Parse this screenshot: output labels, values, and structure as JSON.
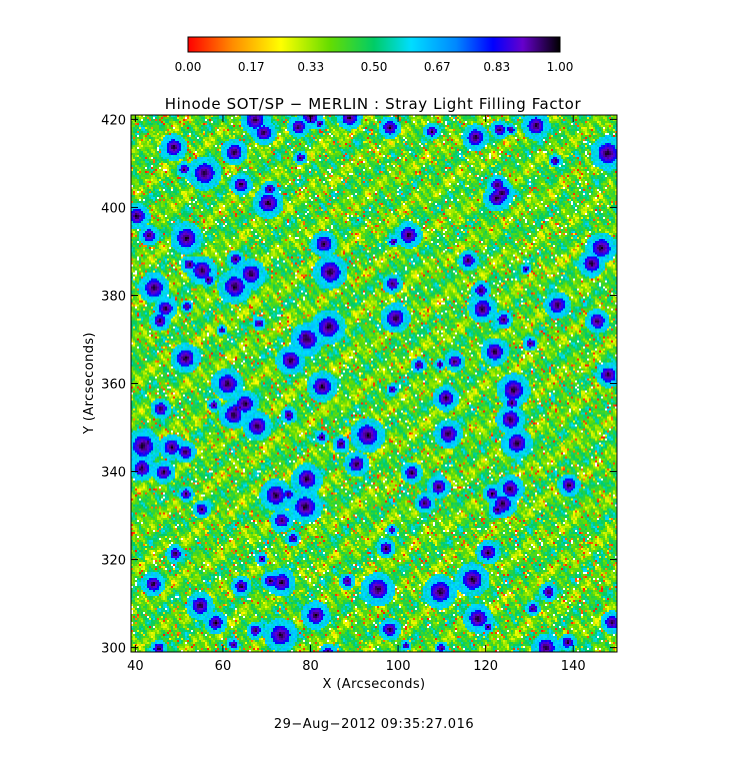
{
  "chart_data": {
    "type": "heatmap",
    "title": "Hinode SOT/SP − MERLIN : Stray Light Filling Factor",
    "xlabel": "X (Arcseconds)",
    "ylabel": "Y (Arcseconds)",
    "xlim": [
      39,
      150
    ],
    "ylim": [
      299,
      421
    ],
    "x_ticks": [
      40,
      60,
      80,
      100,
      120,
      140
    ],
    "y_ticks": [
      300,
      320,
      340,
      360,
      380,
      400,
      420
    ],
    "grid": false,
    "colorbar": {
      "position": "top",
      "range": [
        0.0,
        1.0
      ],
      "tick_values": [
        0.0,
        0.17,
        0.33,
        0.5,
        0.67,
        0.83,
        1.0
      ],
      "tick_labels": [
        "0.00",
        "0.17",
        "0.33",
        "0.50",
        "0.67",
        "0.83",
        "1.00"
      ],
      "colormap_stops": [
        {
          "value": 0.0,
          "color": "#ff0000"
        },
        {
          "value": 0.12,
          "color": "#ff8c00"
        },
        {
          "value": 0.25,
          "color": "#ffff00"
        },
        {
          "value": 0.38,
          "color": "#66dd00"
        },
        {
          "value": 0.5,
          "color": "#00cc66"
        },
        {
          "value": 0.6,
          "color": "#00ddff"
        },
        {
          "value": 0.72,
          "color": "#0088ff"
        },
        {
          "value": 0.82,
          "color": "#0000ff"
        },
        {
          "value": 0.9,
          "color": "#6600cc"
        },
        {
          "value": 1.0,
          "color": "#000000"
        }
      ]
    },
    "field_statistics": {
      "dominant_range": [
        0.3,
        0.55
      ],
      "description_values": "Granular texture: mostly green/yellow (~0.3-0.5), scattered orange/red/white low values, compact blue/black patches (~0.8-1.0)"
    }
  },
  "timestamp": "29−Aug−2012 09:35:27.016"
}
